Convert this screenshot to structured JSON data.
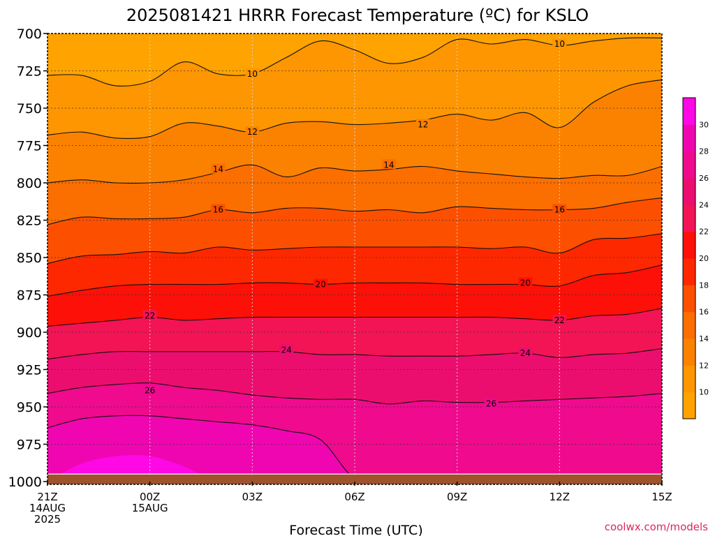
{
  "title": "2025081421 HRRR Forecast Temperature (ºC) for KSLO",
  "xlabel": "Forecast Time (UTC)",
  "credit": "coolwx.com/models",
  "colors": {
    "c8": "#fea300",
    "c10": "#fd9600",
    "c12": "#fb8200",
    "c14": "#fb6e00",
    "c16": "#fc5000",
    "c18": "#fd2800",
    "c20": "#fd1008",
    "c22": "#f21454",
    "c24": "#ec0e6e",
    "c26": "#ef0a8e",
    "c28": "#f006b0",
    "c30": "#fe08e6",
    "ground": "#a0522d",
    "credit": "#e0265a"
  },
  "chart_data": {
    "type": "heatmap",
    "title": "2025081421 HRRR Forecast Temperature (ºC) for KSLO",
    "xlabel": "Forecast Time (UTC)",
    "ylabel": "",
    "units": "ºC",
    "y_scale": "pressure (hPa), inverted",
    "ylim": [
      1000,
      700
    ],
    "x_hours_since_start": [
      0,
      1,
      2,
      3,
      4,
      5,
      6,
      7,
      8,
      9,
      10,
      11,
      12,
      13,
      14,
      15,
      16,
      17,
      18
    ],
    "x_ticks": [
      {
        "hour": 0,
        "lines": [
          "21Z",
          "14AUG",
          "2025"
        ]
      },
      {
        "hour": 3,
        "lines": [
          "00Z",
          "15AUG"
        ]
      },
      {
        "hour": 6,
        "lines": [
          "03Z"
        ]
      },
      {
        "hour": 9,
        "lines": [
          "06Z"
        ]
      },
      {
        "hour": 12,
        "lines": [
          "09Z"
        ]
      },
      {
        "hour": 15,
        "lines": [
          "12Z"
        ]
      },
      {
        "hour": 18,
        "lines": [
          "15Z"
        ]
      }
    ],
    "y_ticks": [
      700,
      725,
      750,
      775,
      800,
      825,
      850,
      875,
      900,
      925,
      950,
      975,
      1000
    ],
    "colorbar_ticks": [
      10,
      12,
      14,
      16,
      18,
      20,
      22,
      24,
      26,
      28,
      30
    ],
    "contour_levels": [
      10,
      12,
      14,
      16,
      18,
      20,
      22,
      24,
      26,
      28
    ],
    "labeled_contours": [
      {
        "level": 10,
        "label": "10",
        "at": [
          [
            6,
            727
          ],
          [
            15,
            707
          ]
        ]
      },
      {
        "level": 12,
        "label": "12",
        "at": [
          [
            6,
            766
          ],
          [
            11,
            761
          ]
        ]
      },
      {
        "level": 14,
        "label": "14",
        "at": [
          [
            5,
            791
          ],
          [
            10,
            788
          ]
        ]
      },
      {
        "level": 16,
        "label": "16",
        "at": [
          [
            5,
            818
          ],
          [
            15,
            818
          ]
        ]
      },
      {
        "level": 20,
        "label": "20",
        "at": [
          [
            8,
            868
          ],
          [
            14,
            867
          ]
        ]
      },
      {
        "level": 22,
        "label": "22",
        "at": [
          [
            3,
            889
          ],
          [
            15,
            892
          ]
        ]
      },
      {
        "level": 24,
        "label": "24",
        "at": [
          [
            7,
            912
          ],
          [
            14,
            914
          ]
        ]
      },
      {
        "level": 26,
        "label": "26",
        "at": [
          [
            3,
            939
          ],
          [
            13,
            948
          ]
        ]
      }
    ],
    "isotherms": [
      {
        "level": 10,
        "pressure": [
          728,
          728,
          735,
          732,
          719,
          727,
          727,
          716,
          705,
          711,
          720,
          716,
          704,
          707,
          704,
          708,
          705,
          703,
          703
        ]
      },
      {
        "level": 12,
        "pressure": [
          768,
          766,
          770,
          769,
          760,
          762,
          766,
          760,
          759,
          761,
          760,
          758,
          754,
          758,
          753,
          763,
          746,
          735,
          731
        ]
      },
      {
        "level": 14,
        "pressure": [
          800,
          798,
          800,
          800,
          798,
          793,
          788,
          796,
          790,
          792,
          791,
          789,
          792,
          794,
          796,
          797,
          795,
          795,
          789
        ]
      },
      {
        "level": 16,
        "pressure": [
          828,
          823,
          824,
          824,
          823,
          818,
          820,
          817,
          817,
          819,
          818,
          820,
          816,
          817,
          818,
          818,
          817,
          813,
          810
        ]
      },
      {
        "level": 18,
        "pressure": [
          854,
          849,
          848,
          846,
          847,
          843,
          845,
          844,
          843,
          843,
          843,
          843,
          843,
          844,
          843,
          847,
          838,
          837,
          834
        ]
      },
      {
        "level": 20,
        "pressure": [
          876,
          872,
          869,
          868,
          868,
          868,
          867,
          867,
          868,
          867,
          867,
          867,
          868,
          868,
          868,
          869,
          862,
          860,
          855
        ]
      },
      {
        "level": 22,
        "pressure": [
          896,
          894,
          892,
          890,
          892,
          891,
          890,
          890,
          890,
          890,
          890,
          890,
          890,
          890,
          891,
          892,
          889,
          888,
          884
        ]
      },
      {
        "level": 24,
        "pressure": [
          918,
          915,
          913,
          913,
          913,
          913,
          913,
          913,
          915,
          915,
          916,
          916,
          916,
          915,
          914,
          917,
          915,
          914,
          911
        ]
      },
      {
        "level": 26,
        "pressure": [
          941,
          937,
          935,
          934,
          937,
          939,
          942,
          944,
          945,
          945,
          948,
          946,
          947,
          947,
          946,
          945,
          944,
          943,
          941
        ]
      },
      {
        "level": 28,
        "pressure": [
          964,
          958,
          956,
          956,
          958,
          960,
          962,
          966,
          972,
          998,
          1000,
          1000,
          1000,
          1000,
          1000,
          1000,
          1000,
          1000,
          1000
        ]
      },
      {
        "level": 30,
        "pressure": [
          1000,
          988,
          983,
          983,
          990,
          1000,
          1000,
          1000,
          1000,
          1000,
          1000,
          1000,
          1000,
          1000,
          1000,
          1000,
          1000,
          1000,
          1000
        ]
      }
    ],
    "ground_level_hpa": 995
  }
}
